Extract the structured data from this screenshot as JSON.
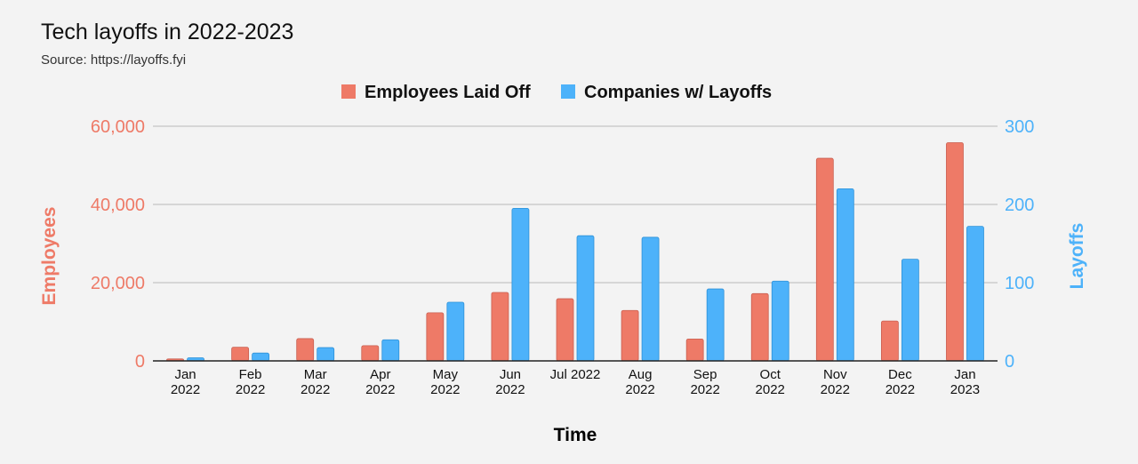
{
  "chart_data": {
    "type": "bar",
    "title": "Tech layoffs in 2022-2023",
    "subtitle": "Source: https://layoffs.fyi",
    "xlabel": "Time",
    "ylabel": "Employees",
    "ylabel_right": "Layoffs",
    "categories": [
      [
        "Jan",
        "2022"
      ],
      [
        "Feb",
        "2022"
      ],
      [
        "Mar",
        "2022"
      ],
      [
        "Apr",
        "2022"
      ],
      [
        "May",
        "2022"
      ],
      [
        "Jun",
        "2022"
      ],
      [
        "Jul 2022"
      ],
      [
        "Aug",
        "2022"
      ],
      [
        "Sep",
        "2022"
      ],
      [
        "Oct",
        "2022"
      ],
      [
        "Nov",
        "2022"
      ],
      [
        "Dec",
        "2022"
      ],
      [
        "Jan",
        "2023"
      ]
    ],
    "series": [
      {
        "name": "Employees Laid Off",
        "axis": "left",
        "color": "#ee7a67",
        "values": [
          500,
          3500,
          5700,
          3900,
          12300,
          17500,
          15900,
          12900,
          5600,
          17200,
          51800,
          10200,
          55800
        ]
      },
      {
        "name": "Companies w/ Layoffs",
        "axis": "right",
        "color": "#4db2fa",
        "values": [
          4,
          10,
          17,
          27,
          75,
          195,
          160,
          158,
          92,
          102,
          220,
          130,
          172
        ]
      }
    ],
    "ylim": [
      0,
      60000
    ],
    "yticks": [
      "0",
      "20,000",
      "40,000",
      "60,000"
    ],
    "yticks_values": [
      0,
      20000,
      40000,
      60000
    ],
    "ylim_right": [
      0,
      300
    ],
    "yticks_right": [
      "0",
      "100",
      "200",
      "300"
    ],
    "yticks_right_values": [
      0,
      100,
      200,
      300
    ],
    "left_axis_color": "#ee7a67",
    "right_axis_color": "#4db2fa",
    "grid": true,
    "legend_position": "top-center"
  }
}
